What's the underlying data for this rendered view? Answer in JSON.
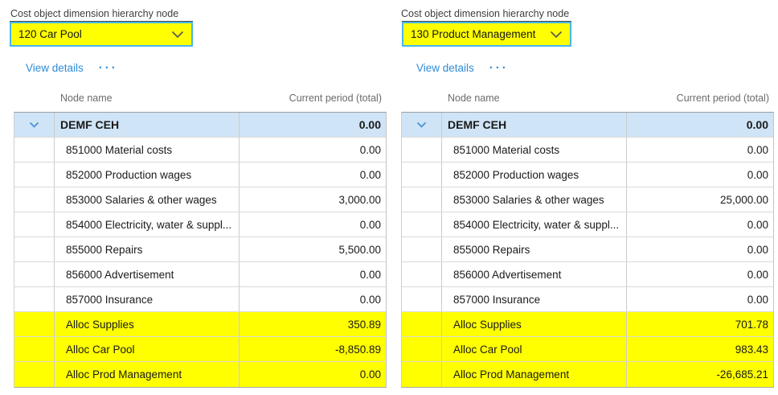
{
  "panels": [
    {
      "field_label": "Cost object dimension hierarchy node",
      "dropdown_value": "120 Car Pool",
      "view_details_label": "View details",
      "more_label": "···",
      "table": {
        "columns": [
          "Node name",
          "Current period (total)"
        ],
        "parent_row": {
          "name": "DEMF CEH",
          "value": "0.00"
        },
        "rows": [
          {
            "name": "851000 Material costs",
            "value": "0.00",
            "highlight": false
          },
          {
            "name": "852000 Production wages",
            "value": "0.00",
            "highlight": false
          },
          {
            "name": "853000 Salaries & other wages",
            "value": "3,000.00",
            "highlight": false
          },
          {
            "name": "854000 Electricity, water & suppl...",
            "value": "0.00",
            "highlight": false
          },
          {
            "name": "855000 Repairs",
            "value": "5,500.00",
            "highlight": false
          },
          {
            "name": "856000 Advertisement",
            "value": "0.00",
            "highlight": false
          },
          {
            "name": "857000 Insurance",
            "value": "0.00",
            "highlight": false
          },
          {
            "name": "Alloc Supplies",
            "value": "350.89",
            "highlight": true
          },
          {
            "name": "Alloc Car Pool",
            "value": "-8,850.89",
            "highlight": true
          },
          {
            "name": "Alloc Prod Management",
            "value": "0.00",
            "highlight": true
          }
        ]
      }
    },
    {
      "field_label": "Cost object dimension hierarchy node",
      "dropdown_value": "130 Product Management",
      "view_details_label": "View details",
      "more_label": "···",
      "table": {
        "columns": [
          "Node name",
          "Current period (total)"
        ],
        "parent_row": {
          "name": "DEMF CEH",
          "value": "0.00"
        },
        "rows": [
          {
            "name": "851000 Material costs",
            "value": "0.00",
            "highlight": false
          },
          {
            "name": "852000 Production wages",
            "value": "0.00",
            "highlight": false
          },
          {
            "name": "853000 Salaries & other wages",
            "value": "25,000.00",
            "highlight": false
          },
          {
            "name": "854000 Electricity, water & suppl...",
            "value": "0.00",
            "highlight": false
          },
          {
            "name": "855000 Repairs",
            "value": "0.00",
            "highlight": false
          },
          {
            "name": "856000 Advertisement",
            "value": "0.00",
            "highlight": false
          },
          {
            "name": "857000 Insurance",
            "value": "0.00",
            "highlight": false
          },
          {
            "name": "Alloc Supplies",
            "value": "701.78",
            "highlight": true
          },
          {
            "name": "Alloc Car Pool",
            "value": "983.43",
            "highlight": true
          },
          {
            "name": "Alloc Prod Management",
            "value": "-26,685.21",
            "highlight": true
          }
        ]
      }
    }
  ],
  "colors": {
    "highlight_row": "#ffff00",
    "selected_row": "#cfe4f6",
    "dropdown_fill": "#ffff00",
    "dropdown_focus_border": "#45b6ee",
    "link": "#2e8bd6",
    "parent_chevron": "#4a93d5"
  }
}
